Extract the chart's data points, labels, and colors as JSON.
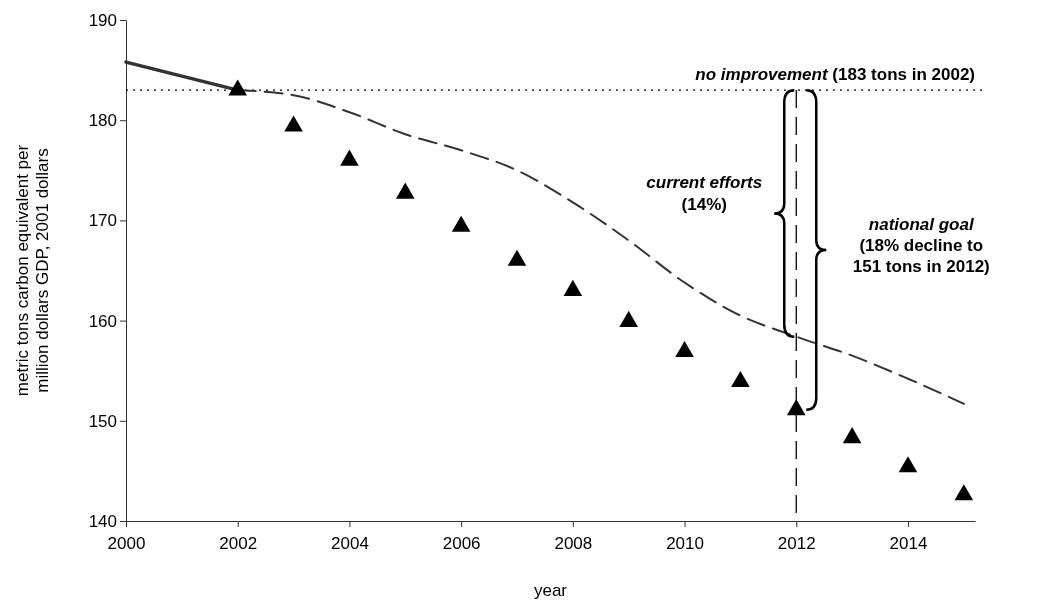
{
  "chart_data": {
    "type": "line",
    "xlabel": "year",
    "ylabel": "metric tons carbon equivalent per million dollars GDP, 2001 dollars",
    "xlim": [
      2000,
      2015.2
    ],
    "xticks": [
      2000,
      2002,
      2004,
      2006,
      2008,
      2010,
      2012,
      2014
    ],
    "ylim": [
      140,
      190
    ],
    "yticks": [
      140,
      150,
      160,
      170,
      180,
      190
    ],
    "grid": false,
    "series": [
      {
        "color": "#333333",
        "line_style": "solid",
        "x": [
          2000,
          2001,
          2002
        ],
        "values": [
          185.8,
          184.4,
          183
        ]
      },
      {
        "color": "#333333",
        "line_style": "dashed",
        "x": [
          2002,
          2003,
          2004,
          2005,
          2006,
          2007,
          2008,
          2009,
          2010,
          2011,
          2012,
          2013,
          2014,
          2015
        ],
        "values": [
          183,
          182.5,
          180.8,
          178.6,
          177,
          175,
          171.8,
          168,
          163.8,
          160.5,
          158.4,
          156.5,
          154.2,
          151.7
        ]
      },
      {
        "type": "scatter",
        "color": "#000000",
        "marker": "triangle",
        "x": [
          2002,
          2003,
          2004,
          2005,
          2006,
          2007,
          2008,
          2009,
          2010,
          2011,
          2012,
          2013,
          2014,
          2015
        ],
        "values": [
          183,
          179.4,
          176,
          172.7,
          169.4,
          166,
          163,
          159.9,
          156.9,
          153.9,
          151.1,
          148.3,
          145.4,
          142.6
        ]
      }
    ],
    "ref_lines": [
      {
        "axis": "y",
        "value": 183,
        "label": "no improvement (183 tons in 2002)",
        "line_style": "dotted",
        "color": "#000000"
      },
      {
        "axis": "x",
        "value": 2012,
        "line_style": "dashed",
        "color": "#000000"
      }
    ],
    "annotations": [
      "current efforts (14%)",
      "national goal (18% decline to 151 tons in 2012)"
    ]
  }
}
